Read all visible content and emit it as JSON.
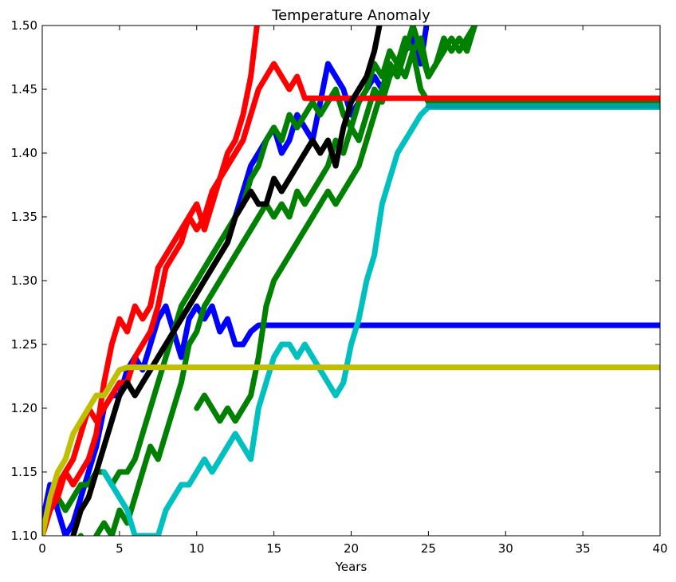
{
  "chart_data": {
    "type": "line",
    "title": "Temperature Anomaly",
    "xlabel": "Years",
    "ylabel": "",
    "xlim": [
      0,
      40
    ],
    "ylim": [
      1.1,
      1.5
    ],
    "xticks": [
      0,
      5,
      10,
      15,
      20,
      25,
      30,
      35,
      40
    ],
    "xtick_labels": [
      "0",
      "5",
      "10",
      "15",
      "20",
      "25",
      "30",
      "35",
      "40"
    ],
    "yticks": [
      1.1,
      1.15,
      1.2,
      1.25,
      1.3,
      1.35,
      1.4,
      1.45,
      1.5
    ],
    "ytick_labels": [
      "1.10",
      "1.15",
      "1.20",
      "1.25",
      "1.30",
      "1.35",
      "1.40",
      "1.45",
      "1.50"
    ],
    "grid": false,
    "legend": "none",
    "series": [
      {
        "color": "#0000ff",
        "x": [
          0,
          0.5,
          1,
          1.5,
          2,
          2.5,
          3,
          3.5,
          4,
          4.5,
          5,
          5.5,
          6,
          6.5,
          7,
          7.5,
          8,
          8.5,
          9,
          9.5,
          10,
          10.5,
          11,
          11.5,
          12,
          12.5,
          13,
          13.5,
          14,
          40
        ],
        "y": [
          1.11,
          1.14,
          1.12,
          1.1,
          1.11,
          1.13,
          1.15,
          1.17,
          1.2,
          1.21,
          1.21,
          1.23,
          1.24,
          1.23,
          1.25,
          1.27,
          1.28,
          1.26,
          1.24,
          1.27,
          1.28,
          1.27,
          1.28,
          1.26,
          1.27,
          1.25,
          1.25,
          1.26,
          1.265,
          1.265
        ]
      },
      {
        "color": "#0000ff",
        "x": [
          12,
          12.5,
          13,
          13.5,
          14,
          14.5,
          15,
          15.5,
          16,
          16.5,
          17,
          17.5,
          18,
          18.5,
          19,
          19.5,
          20,
          20.5,
          21,
          21.5,
          22,
          22.5,
          23,
          23.5,
          24,
          24.5,
          25
        ],
        "y": [
          1.33,
          1.35,
          1.37,
          1.39,
          1.4,
          1.41,
          1.42,
          1.4,
          1.41,
          1.43,
          1.42,
          1.41,
          1.44,
          1.47,
          1.46,
          1.45,
          1.43,
          1.44,
          1.45,
          1.46,
          1.45,
          1.47,
          1.46,
          1.48,
          1.49,
          1.47,
          1.51
        ]
      },
      {
        "color": "#008000",
        "x": [
          0,
          0.5,
          1,
          1.5,
          2,
          2.5,
          3,
          3.5,
          4,
          4.5,
          5,
          5.5,
          6,
          6.5,
          7,
          7.5,
          8,
          8.5,
          9,
          9.5,
          10,
          10.5,
          11,
          11.5,
          12,
          12.5,
          13,
          13.5,
          14,
          14.5,
          15,
          15.5,
          16,
          16.5,
          17,
          17.5,
          18,
          18.5,
          19,
          19.5,
          20,
          20.5,
          21,
          21.5,
          22,
          22.5,
          23,
          23.5,
          24,
          24.5,
          25,
          40
        ],
        "y": [
          1.1,
          1.12,
          1.13,
          1.12,
          1.13,
          1.14,
          1.14,
          1.15,
          1.15,
          1.14,
          1.15,
          1.15,
          1.16,
          1.18,
          1.2,
          1.22,
          1.24,
          1.26,
          1.28,
          1.29,
          1.3,
          1.31,
          1.32,
          1.33,
          1.34,
          1.35,
          1.36,
          1.38,
          1.39,
          1.41,
          1.42,
          1.41,
          1.43,
          1.42,
          1.43,
          1.44,
          1.43,
          1.44,
          1.45,
          1.43,
          1.42,
          1.44,
          1.45,
          1.47,
          1.46,
          1.48,
          1.47,
          1.49,
          1.48,
          1.45,
          1.44,
          1.44
        ]
      },
      {
        "color": "#008000",
        "x": [
          0,
          1,
          2,
          2.5,
          3,
          3.5,
          4,
          4.5,
          5,
          5.5,
          6,
          6.5,
          7,
          7.5,
          8,
          8.5,
          9,
          9.5,
          10,
          10.5,
          11,
          11.5,
          12,
          12.5,
          13,
          13.5,
          14,
          14.5,
          15,
          15.5,
          16,
          16.5,
          17,
          17.5,
          18,
          18.5,
          19,
          19.5,
          20,
          20.5,
          21,
          21.5,
          22,
          22.5,
          23,
          23.5,
          24,
          24.5,
          25,
          25.5,
          26,
          26.5,
          27,
          27.5,
          28
        ],
        "y": [
          1.05,
          1.08,
          1.09,
          1.1,
          1.08,
          1.1,
          1.11,
          1.1,
          1.12,
          1.11,
          1.13,
          1.15,
          1.17,
          1.16,
          1.18,
          1.2,
          1.22,
          1.25,
          1.26,
          1.28,
          1.29,
          1.3,
          1.31,
          1.32,
          1.33,
          1.34,
          1.35,
          1.36,
          1.35,
          1.36,
          1.35,
          1.37,
          1.36,
          1.37,
          1.38,
          1.39,
          1.41,
          1.4,
          1.42,
          1.41,
          1.43,
          1.45,
          1.44,
          1.46,
          1.47,
          1.46,
          1.48,
          1.49,
          1.46,
          1.47,
          1.48,
          1.49,
          1.48,
          1.49,
          1.5
        ]
      },
      {
        "color": "#008000",
        "x": [
          10,
          10.5,
          11,
          11.5,
          12,
          12.5,
          13,
          13.5,
          14,
          14.5,
          15,
          15.5,
          16,
          16.5,
          17,
          17.5,
          18,
          18.5,
          19,
          19.5,
          20,
          20.5,
          21,
          21.5,
          22,
          22.5,
          23,
          23.5,
          24,
          24.5,
          25,
          25.5,
          26,
          26.5,
          27,
          27.5,
          28
        ],
        "y": [
          1.2,
          1.21,
          1.2,
          1.19,
          1.2,
          1.19,
          1.2,
          1.21,
          1.24,
          1.28,
          1.3,
          1.31,
          1.32,
          1.33,
          1.34,
          1.35,
          1.36,
          1.37,
          1.36,
          1.37,
          1.38,
          1.39,
          1.41,
          1.43,
          1.45,
          1.47,
          1.46,
          1.48,
          1.5,
          1.48,
          1.46,
          1.47,
          1.49,
          1.48,
          1.49,
          1.48,
          1.5
        ]
      },
      {
        "color": "#ff0000",
        "x": [
          0,
          0.5,
          1,
          1.5,
          2,
          2.5,
          3,
          3.5,
          4,
          4.5,
          5,
          5.5,
          6,
          6.5,
          7,
          7.5,
          8,
          8.5,
          9,
          9.5,
          10,
          10.5,
          11,
          11.5,
          12,
          12.5,
          13,
          13.5,
          14
        ],
        "y": [
          1.1,
          1.12,
          1.13,
          1.15,
          1.14,
          1.15,
          1.16,
          1.18,
          1.22,
          1.25,
          1.27,
          1.26,
          1.28,
          1.27,
          1.28,
          1.31,
          1.32,
          1.33,
          1.34,
          1.35,
          1.36,
          1.34,
          1.36,
          1.38,
          1.4,
          1.41,
          1.43,
          1.46,
          1.51
        ]
      },
      {
        "color": "#ff0000",
        "x": [
          0,
          0.5,
          1,
          1.5,
          2,
          2.5,
          3,
          3.5,
          4,
          4.5,
          5,
          5.5,
          6,
          6.5,
          7,
          7.5,
          8,
          8.5,
          9,
          9.5,
          10,
          10.5,
          11,
          11.5,
          12,
          12.5,
          13,
          13.5,
          14,
          14.5,
          15,
          15.5,
          16,
          16.5,
          17,
          40
        ],
        "y": [
          1.1,
          1.12,
          1.14,
          1.15,
          1.16,
          1.18,
          1.2,
          1.19,
          1.2,
          1.21,
          1.22,
          1.22,
          1.24,
          1.25,
          1.26,
          1.28,
          1.31,
          1.32,
          1.33,
          1.35,
          1.34,
          1.35,
          1.37,
          1.38,
          1.39,
          1.4,
          1.41,
          1.43,
          1.45,
          1.46,
          1.47,
          1.46,
          1.45,
          1.46,
          1.443,
          1.443
        ]
      },
      {
        "color": "#000000",
        "x": [
          2,
          2.5,
          3,
          3.5,
          4,
          4.5,
          5,
          5.5,
          6,
          6.5,
          7,
          7.5,
          8,
          8.5,
          9,
          9.5,
          10,
          10.5,
          11,
          11.5,
          12,
          12.5,
          13,
          13.5,
          14,
          14.5,
          15,
          15.5,
          16,
          16.5,
          17,
          17.5,
          18,
          18.5,
          19,
          19.5,
          20,
          20.5,
          21,
          21.5,
          22
        ],
        "y": [
          1.1,
          1.12,
          1.13,
          1.15,
          1.17,
          1.19,
          1.21,
          1.22,
          1.21,
          1.22,
          1.23,
          1.24,
          1.25,
          1.26,
          1.27,
          1.28,
          1.29,
          1.3,
          1.31,
          1.32,
          1.33,
          1.35,
          1.36,
          1.37,
          1.36,
          1.36,
          1.38,
          1.37,
          1.38,
          1.39,
          1.4,
          1.41,
          1.4,
          1.41,
          1.39,
          1.42,
          1.44,
          1.45,
          1.46,
          1.48,
          1.51
        ]
      },
      {
        "color": "#00bfbf",
        "x": [
          4,
          4.5,
          5,
          5.5,
          6,
          6.5,
          7,
          7.5,
          8,
          8.5,
          9,
          9.5,
          10,
          10.5,
          11,
          11.5,
          12,
          12.5,
          13,
          13.5,
          14,
          14.5,
          15,
          15.5,
          16,
          16.5,
          17,
          17.5,
          18,
          18.5,
          19,
          19.5,
          20,
          20.5,
          21,
          21.5,
          22,
          22.5,
          23,
          23.5,
          24,
          24.5,
          25,
          40
        ],
        "y": [
          1.15,
          1.14,
          1.13,
          1.12,
          1.1,
          1.1,
          1.1,
          1.1,
          1.12,
          1.13,
          1.14,
          1.14,
          1.15,
          1.16,
          1.15,
          1.16,
          1.17,
          1.18,
          1.17,
          1.16,
          1.2,
          1.22,
          1.24,
          1.25,
          1.25,
          1.24,
          1.25,
          1.24,
          1.23,
          1.22,
          1.21,
          1.22,
          1.25,
          1.27,
          1.3,
          1.32,
          1.36,
          1.38,
          1.4,
          1.41,
          1.42,
          1.43,
          1.436,
          1.436
        ]
      },
      {
        "color": "#bfbf00",
        "x": [
          0,
          0.5,
          1,
          1.5,
          2,
          2.5,
          3,
          3.5,
          4,
          4.5,
          5,
          5.5,
          40
        ],
        "y": [
          1.1,
          1.13,
          1.15,
          1.16,
          1.18,
          1.19,
          1.2,
          1.21,
          1.21,
          1.22,
          1.23,
          1.232,
          1.232
        ]
      },
      {
        "color": "#00a0a0",
        "x": [
          25,
          40
        ],
        "y": [
          1.437,
          1.437
        ]
      }
    ]
  }
}
